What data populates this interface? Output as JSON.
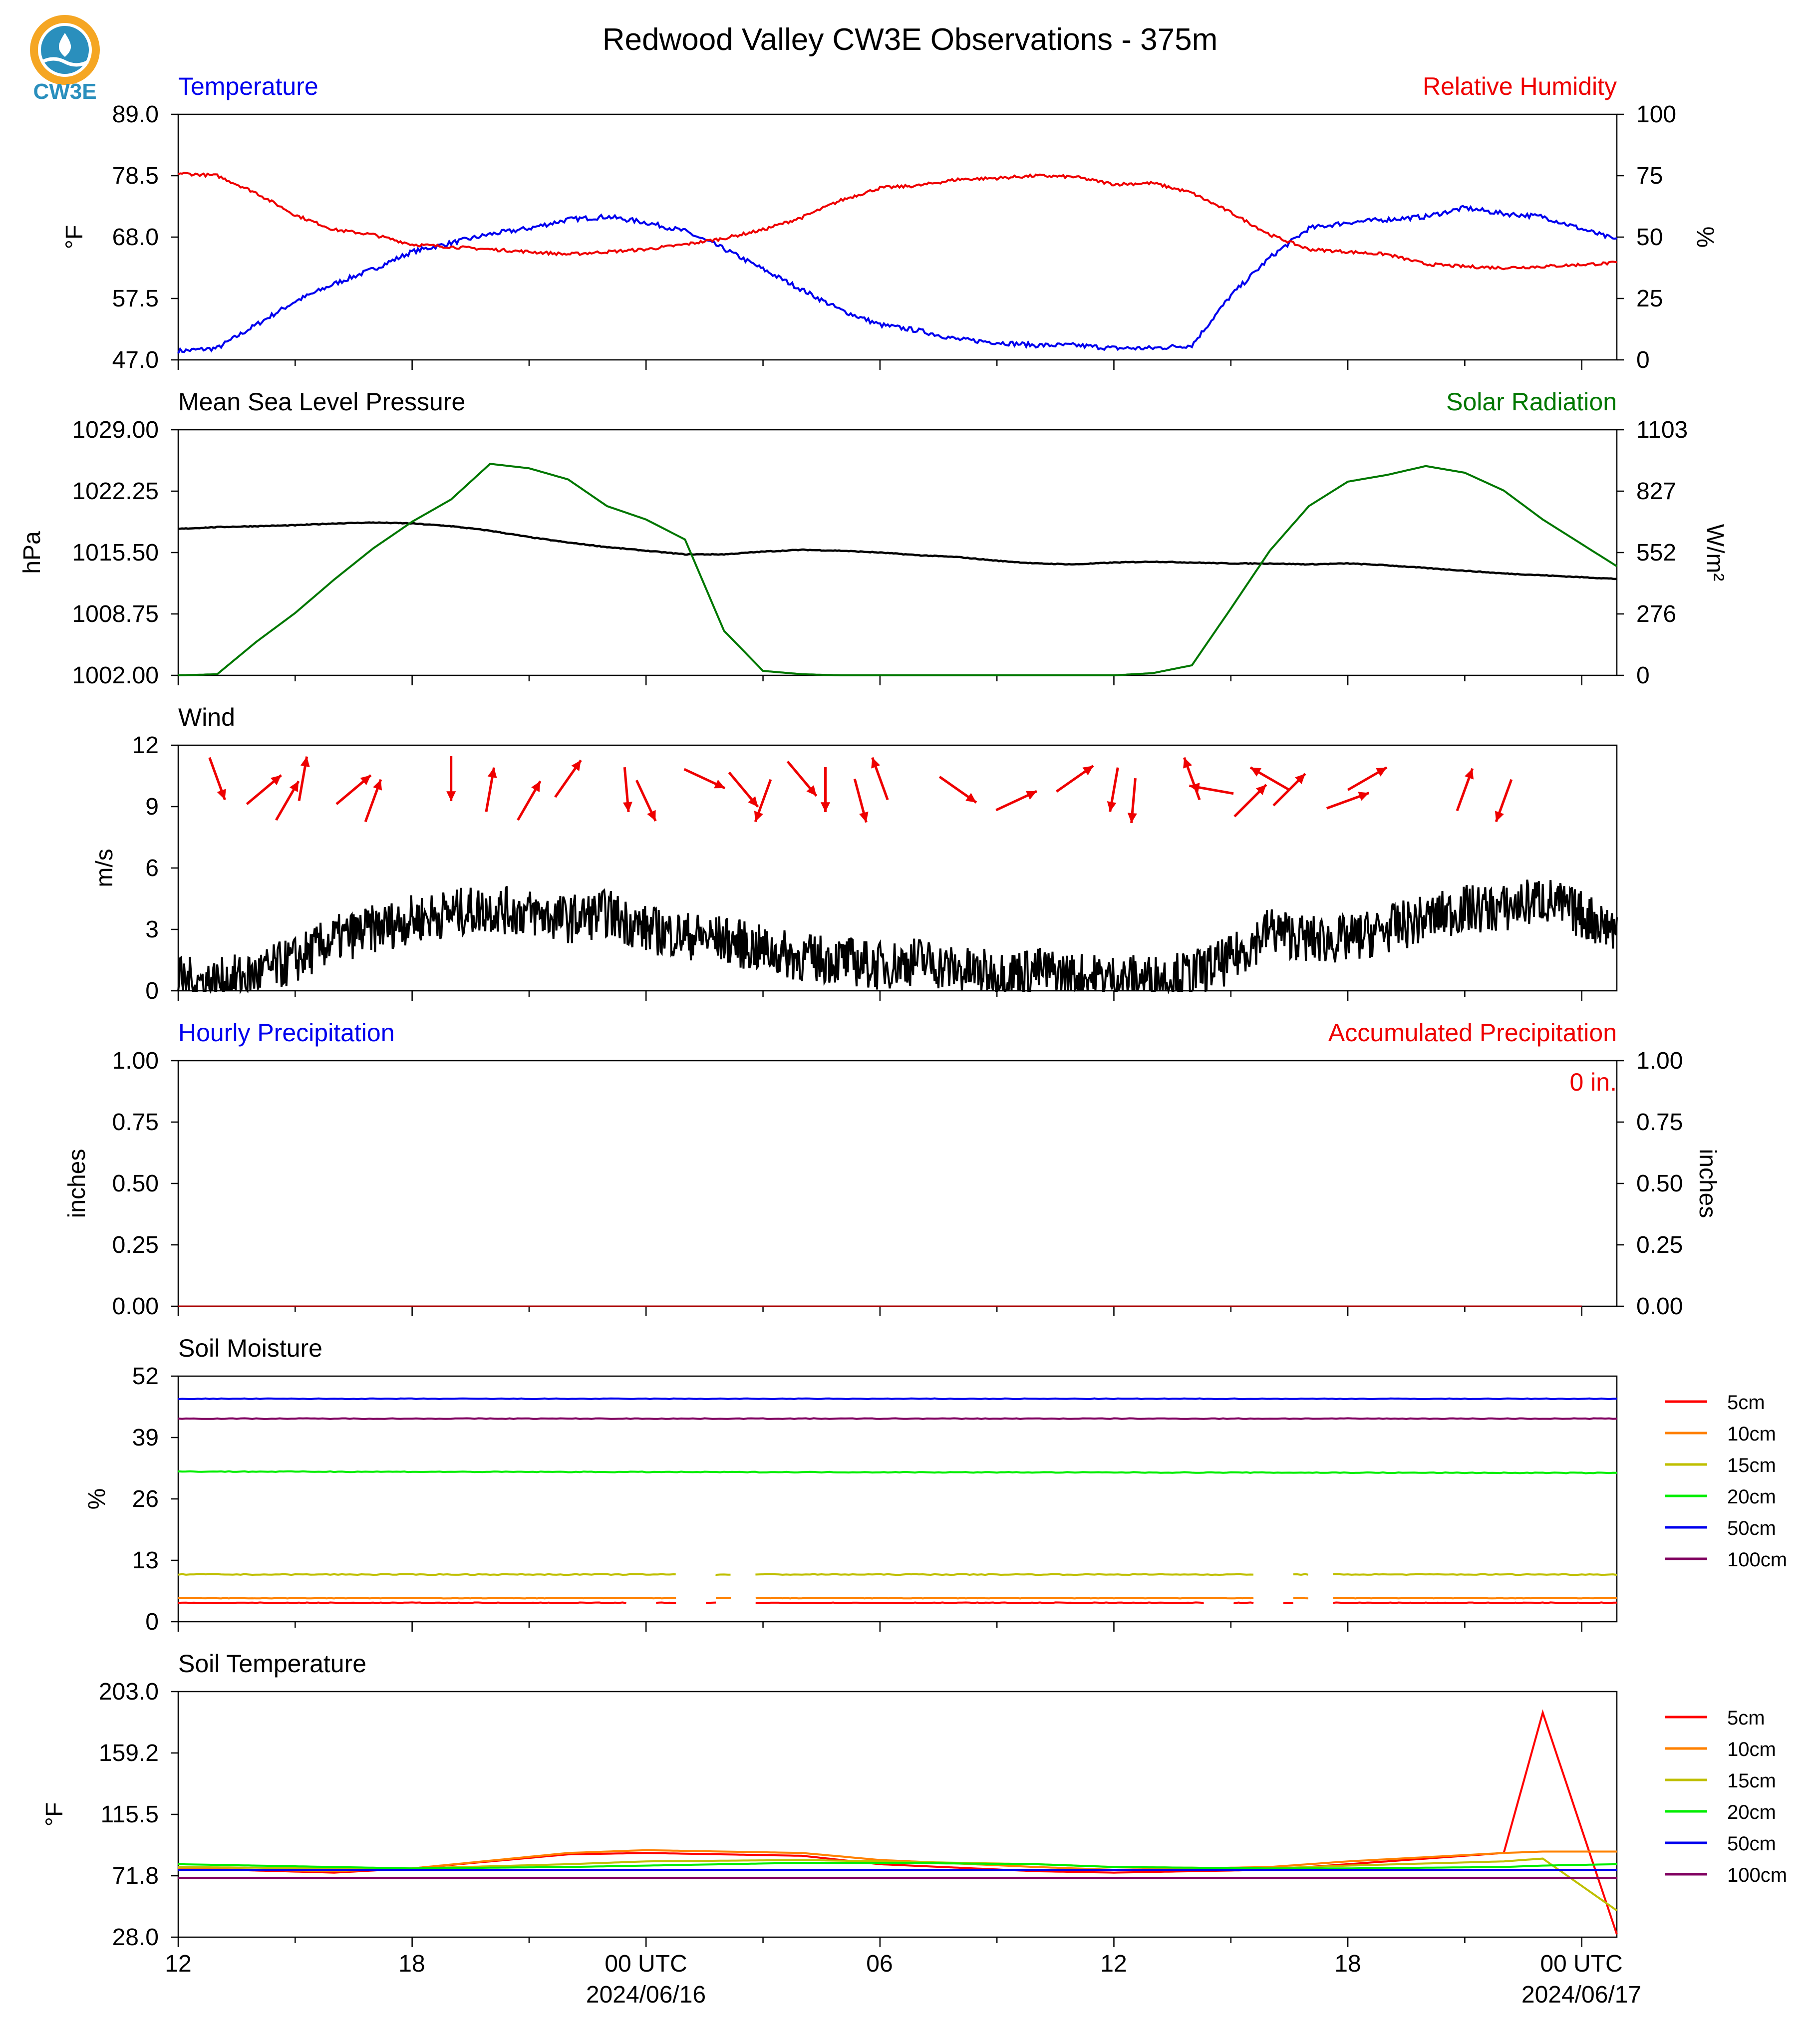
{
  "title": "Redwood Valley CW3E Observations - 375m",
  "logo": {
    "text": "CW3E",
    "ring_color": "#f5a623",
    "drop_color": "#2a8fbd"
  },
  "x_axis": {
    "ticks": [
      "12",
      "18",
      "00 UTC",
      "06",
      "12",
      "18",
      "00 UTC"
    ],
    "dates": [
      "2024/06/16",
      "2024/06/17"
    ]
  },
  "colors": {
    "temperature": "#0000ee",
    "humidity": "#ee0000",
    "pressure": "#000000",
    "solar": "#007700",
    "wind": "#000000",
    "wind_arrows": "#ee0000",
    "hourly_precip": "#0000ee",
    "accum_precip": "#ee0000"
  },
  "panels": {
    "temp_rh": {
      "left_title": "Temperature",
      "right_title": "Relative Humidity",
      "left_ylabel": "°F",
      "right_ylabel": "%",
      "left_ticks": [
        "89.0",
        "78.5",
        "68.0",
        "57.5",
        "47.0"
      ],
      "right_ticks": [
        "100",
        "75",
        "50",
        "25",
        "0"
      ]
    },
    "pressure_solar": {
      "left_title": "Mean Sea Level Pressure",
      "right_title": "Solar Radiation",
      "left_ylabel": "hPa",
      "right_ylabel": "W/m²",
      "left_ticks": [
        "1029.00",
        "1022.25",
        "1015.50",
        "1008.75",
        "1002.00"
      ],
      "right_ticks": [
        "1103",
        "827",
        "552",
        "276",
        "0"
      ]
    },
    "wind": {
      "left_title": "Wind",
      "left_ylabel": "m/s",
      "left_ticks": [
        "12",
        "9",
        "6",
        "3",
        "0"
      ]
    },
    "precip": {
      "left_title": "Hourly Precipitation",
      "right_title": "Accumulated Precipitation",
      "left_ylabel": "inches",
      "right_ylabel": "inches",
      "left_ticks": [
        "1.00",
        "0.75",
        "0.50",
        "0.25",
        "0.00"
      ],
      "right_ticks": [
        "1.00",
        "0.75",
        "0.50",
        "0.25",
        "0.00"
      ],
      "total_label": "0 in."
    },
    "soil_moisture": {
      "left_title": "Soil Moisture",
      "left_ylabel": "%",
      "left_ticks": [
        "52",
        "39",
        "26",
        "13",
        "0"
      ]
    },
    "soil_temp": {
      "left_title": "Soil Temperature",
      "left_ylabel": "°F",
      "left_ticks": [
        "203.0",
        "159.2",
        "115.5",
        "71.8",
        "28.0"
      ]
    }
  },
  "legend": [
    {
      "label": "5cm",
      "color": "#ff0000"
    },
    {
      "label": "10cm",
      "color": "#ff8000"
    },
    {
      "label": "15cm",
      "color": "#bfbf00"
    },
    {
      "label": "20cm",
      "color": "#00ee00"
    },
    {
      "label": "50cm",
      "color": "#0000ee"
    },
    {
      "label": "100cm",
      "color": "#800060"
    }
  ],
  "chart_data": [
    {
      "type": "line",
      "x": [
        12,
        13,
        14,
        15,
        16,
        17,
        18,
        19,
        20,
        21,
        22,
        23,
        24,
        25,
        26,
        27,
        28,
        29,
        30,
        31,
        32,
        33,
        34,
        35,
        36,
        37,
        38,
        39,
        40,
        41,
        42,
        43,
        44,
        45,
        46,
        47,
        48.9
      ],
      "series": [
        {
          "name": "Temperature",
          "axis": "left",
          "color": "#0000ee",
          "values": [
            48.5,
            49,
            53,
            57,
            60,
            62.5,
            65.5,
            67,
            68.5,
            69.5,
            71,
            71.5,
            70.5,
            69,
            66,
            62.5,
            59,
            55.5,
            53,
            52,
            50.5,
            50,
            49.5,
            49.5,
            49,
            49,
            49.5,
            58,
            64.5,
            69.5,
            70.5,
            71,
            71.5,
            73,
            72,
            71.5,
            67.5
          ]
        },
        {
          "name": "Relative Humidity",
          "axis": "right",
          "color": "#ee0000",
          "values": [
            76,
            75,
            68,
            59,
            53,
            51,
            47,
            46,
            45,
            44,
            43,
            44,
            45,
            47,
            49.5,
            53,
            58,
            65,
            70,
            71,
            73.5,
            74,
            75,
            74.5,
            71.5,
            72,
            68,
            60,
            51,
            45,
            44,
            43,
            39,
            38,
            37.5,
            38,
            39.5
          ]
        }
      ],
      "left_ylim": [
        47,
        89
      ],
      "right_ylim": [
        0,
        100
      ]
    },
    {
      "type": "line",
      "x": [
        12,
        13,
        14,
        15,
        16,
        17,
        18,
        19,
        20,
        21,
        22,
        23,
        24,
        25,
        26,
        27,
        28,
        29,
        30,
        31,
        32,
        33,
        34,
        35,
        36,
        37,
        38,
        39,
        40,
        41,
        42,
        43,
        44,
        45,
        46,
        47,
        48.9
      ],
      "series": [
        {
          "name": "Mean Sea Level Pressure",
          "axis": "left",
          "color": "#000000",
          "values": [
            1018.1,
            1018.3,
            1018.4,
            1018.5,
            1018.7,
            1018.8,
            1018.7,
            1018.4,
            1017.9,
            1017.2,
            1016.6,
            1016.1,
            1015.7,
            1015.3,
            1015.3,
            1015.6,
            1015.8,
            1015.7,
            1015.5,
            1015.2,
            1015,
            1014.6,
            1014.3,
            1014.2,
            1014.4,
            1014.5,
            1014.4,
            1014.3,
            1014.3,
            1014.2,
            1014.3,
            1014.1,
            1013.8,
            1013.5,
            1013.2,
            1013,
            1012.6
          ]
        },
        {
          "name": "Solar Radiation",
          "axis": "right",
          "color": "#007700",
          "values": [
            0,
            5,
            150,
            280,
            430,
            570,
            690,
            790,
            950,
            930,
            880,
            760,
            700,
            610,
            200,
            20,
            5,
            0,
            0,
            0,
            0,
            0,
            0,
            0,
            0,
            10,
            45,
            300,
            560,
            760,
            870,
            900,
            940,
            910,
            830,
            700,
            490
          ]
        }
      ],
      "left_ylim": [
        1002,
        1029
      ],
      "right_ylim": [
        0,
        1103
      ]
    },
    {
      "type": "line",
      "x": [
        12,
        13,
        14,
        15,
        16,
        17,
        18,
        19,
        20,
        21,
        22,
        23,
        24,
        25,
        26,
        27,
        28,
        29,
        30,
        31,
        32,
        33,
        34,
        35,
        36,
        37,
        38,
        39,
        40,
        41,
        42,
        43,
        44,
        45,
        46,
        47,
        48.9
      ],
      "series": [
        {
          "name": "Wind",
          "axis": "left",
          "color": "#000000",
          "values": [
            0.5,
            0.4,
            0.8,
            1.5,
            2.5,
            3,
            3.5,
            3.8,
            4,
            3.8,
            3.5,
            3.8,
            3,
            2.7,
            2.5,
            2,
            1.6,
            1.5,
            1.2,
            1.5,
            1,
            0.8,
            1,
            0.7,
            0.6,
            0.6,
            0.8,
            1.5,
            3,
            2.5,
            2.5,
            3,
            3.5,
            4,
            4,
            4.5,
            3
          ]
        }
      ],
      "left_ylim": [
        0,
        12
      ]
    },
    {
      "type": "line",
      "x": [
        12,
        48.9
      ],
      "series": [
        {
          "name": "Hourly Precipitation",
          "axis": "left",
          "color": "#0000ee",
          "values": [
            0,
            0
          ]
        },
        {
          "name": "Accumulated Precipitation",
          "axis": "right",
          "color": "#ee0000",
          "values": [
            0,
            0
          ]
        }
      ],
      "left_ylim": [
        0,
        1
      ],
      "right_ylim": [
        0,
        1
      ]
    },
    {
      "type": "line",
      "x": [
        12,
        48.9
      ],
      "series": [
        {
          "name": "5cm",
          "color": "#ff0000",
          "values": [
            4,
            4
          ]
        },
        {
          "name": "10cm",
          "color": "#ff8000",
          "values": [
            5,
            5
          ]
        },
        {
          "name": "15cm",
          "color": "#bfbf00",
          "values": [
            10,
            10
          ]
        },
        {
          "name": "20cm",
          "color": "#00ee00",
          "values": [
            31.8,
            31.5
          ]
        },
        {
          "name": "50cm",
          "color": "#0000ee",
          "values": [
            47.2,
            47.2
          ]
        },
        {
          "name": "100cm",
          "color": "#800060",
          "values": [
            43,
            43
          ]
        }
      ],
      "left_ylim": [
        0,
        52
      ]
    },
    {
      "type": "line",
      "x": [
        12,
        16,
        18,
        22,
        24,
        28,
        30,
        34,
        36,
        40,
        42,
        46,
        47,
        48.9
      ],
      "series": [
        {
          "name": "5cm",
          "color": "#ff0000",
          "values": [
            77,
            74,
            77,
            87,
            88,
            86,
            80,
            75,
            74,
            76,
            80,
            88,
            188,
            30
          ]
        },
        {
          "name": "10cm",
          "color": "#ff8000",
          "values": [
            77,
            75,
            77,
            88,
            90,
            88,
            83,
            78,
            76,
            78,
            82,
            88,
            89,
            89
          ]
        },
        {
          "name": "15cm",
          "color": "#bfbf00",
          "values": [
            78,
            77,
            77,
            80,
            82,
            83,
            82,
            80,
            78,
            77,
            79,
            82,
            84,
            47
          ]
        },
        {
          "name": "20cm",
          "color": "#00ee00",
          "values": [
            80,
            78,
            77,
            78,
            79,
            81,
            81,
            80,
            78,
            77,
            77,
            78,
            79,
            80
          ]
        },
        {
          "name": "50cm",
          "color": "#0000ee",
          "values": [
            76,
            76,
            76,
            76,
            76,
            76,
            76,
            76,
            76,
            76,
            76,
            76,
            76,
            76
          ]
        },
        {
          "name": "100cm",
          "color": "#800060",
          "values": [
            70,
            70,
            70,
            70,
            70,
            70,
            70,
            70,
            70,
            70,
            70,
            70,
            70,
            70
          ]
        }
      ],
      "left_ylim": [
        28,
        203
      ]
    }
  ],
  "wind_arrows": [
    {
      "x": 13.0,
      "dir": 340
    },
    {
      "x": 14.2,
      "dir": 230
    },
    {
      "x": 14.8,
      "dir": 210
    },
    {
      "x": 15.2,
      "dir": 190
    },
    {
      "x": 16.5,
      "dir": 230
    },
    {
      "x": 17.0,
      "dir": 200
    },
    {
      "x": 19.0,
      "dir": 0
    },
    {
      "x": 20.0,
      "dir": 190
    },
    {
      "x": 21.0,
      "dir": 210
    },
    {
      "x": 22.0,
      "dir": 215
    },
    {
      "x": 23.5,
      "dir": 355
    },
    {
      "x": 24.0,
      "dir": 335
    },
    {
      "x": 25.5,
      "dir": 295
    },
    {
      "x": 26.5,
      "dir": 320
    },
    {
      "x": 27.0,
      "dir": 20
    },
    {
      "x": 28.0,
      "dir": 320
    },
    {
      "x": 28.6,
      "dir": 0
    },
    {
      "x": 29.5,
      "dir": 345
    },
    {
      "x": 30.0,
      "dir": 160
    },
    {
      "x": 32.0,
      "dir": 305
    },
    {
      "x": 33.5,
      "dir": 245
    },
    {
      "x": 35.0,
      "dir": 235
    },
    {
      "x": 36.0,
      "dir": 10
    },
    {
      "x": 36.5,
      "dir": 5
    },
    {
      "x": 38.0,
      "dir": 160
    },
    {
      "x": 38.5,
      "dir": 100
    },
    {
      "x": 39.5,
      "dir": 225
    },
    {
      "x": 40.0,
      "dir": 120
    },
    {
      "x": 40.5,
      "dir": 225
    },
    {
      "x": 42.0,
      "dir": 250
    },
    {
      "x": 42.5,
      "dir": 240
    },
    {
      "x": 45.0,
      "dir": 200
    },
    {
      "x": 46.0,
      "dir": 20
    }
  ]
}
